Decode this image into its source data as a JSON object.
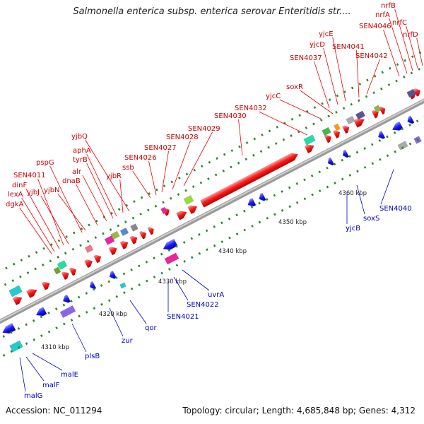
{
  "title": "Salmonella enterica subsp. enterica serovar Enteritidis str....",
  "accession": "Accession: NC_011294",
  "summary": "Topology: circular; Length: 4,685,848 bp; Genes: 4,312",
  "colors": {
    "forward": "#ff0000",
    "reverse": "#0000ff",
    "backbone": "#999999"
  },
  "tick_labels": [
    "4310 kbp",
    "4320 kbp",
    "4330 kbp",
    "4340 kbp",
    "4350 kbp",
    "4360 kbp"
  ],
  "forward_labels": [
    "dgkA",
    "lexA",
    "dinF",
    "SEN4011",
    "yjbJ",
    "pspG",
    "yjbN",
    "dnaB",
    "alr",
    "tyrB",
    "aphA",
    "yjbQ",
    "yjbR",
    "ssb",
    "SEN4026",
    "SEN4027",
    "SEN4028",
    "SEN4029",
    "SEN4030",
    "SEN4032",
    "yjcC",
    "soxR",
    "SEN4037",
    "yjcD",
    "yjcE",
    "SEN4041",
    "SEN4042",
    "SEN4046",
    "nrfA",
    "nrfB",
    "nrfC",
    "nrfD"
  ],
  "reverse_labels": [
    "malG",
    "malF",
    "malE",
    "plsB",
    "zur",
    "qor",
    "SEN4021",
    "SEN4022",
    "uvrA",
    "yjcB",
    "soxS",
    "SEN4040"
  ]
}
